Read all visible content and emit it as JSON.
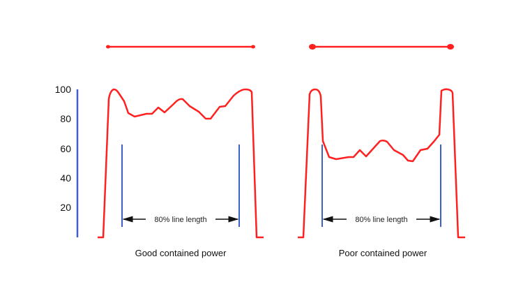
{
  "colors": {
    "profile": "#ff2020",
    "marker": "#3f5fc8",
    "text": "#111111"
  },
  "y_axis_ticks": [
    "100",
    "80",
    "60",
    "40",
    "20"
  ],
  "panels": [
    {
      "caption": "Good contained power",
      "annotation": "80% line length"
    },
    {
      "caption": "Poor contained power",
      "annotation": "80% line length"
    }
  ]
}
